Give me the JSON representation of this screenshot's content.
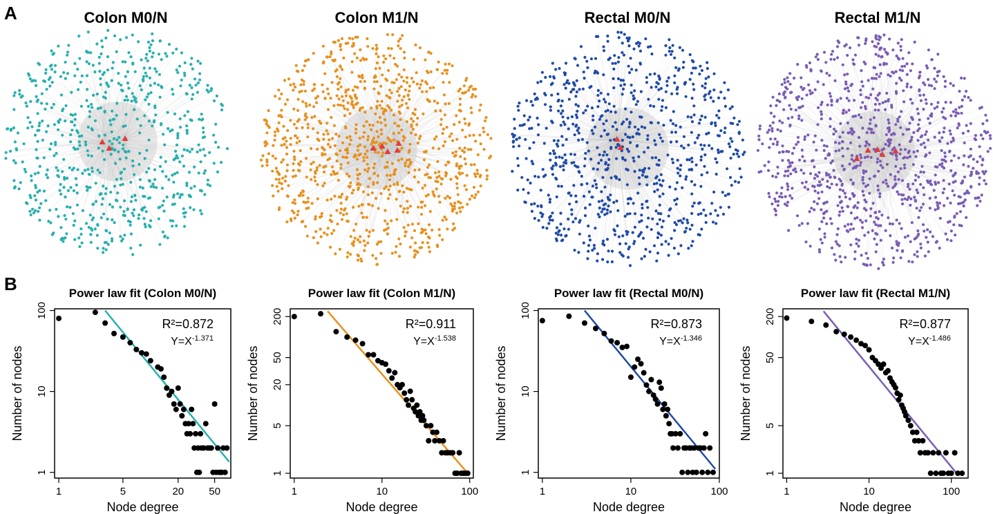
{
  "panel_labels": {
    "a": "A",
    "b": "B"
  },
  "networks": [
    {
      "title": "Colon M0/N",
      "color": "#26b0ad",
      "node_count": 700
    },
    {
      "title": "Colon M1/N",
      "color": "#e8901c",
      "node_count": 1000
    },
    {
      "title": "Rectal M0/N",
      "color": "#1f4aa8",
      "node_count": 850
    },
    {
      "title": "Rectal M1/N",
      "color": "#7a5cb5",
      "node_count": 1000
    }
  ],
  "hub_color": "#e23b3b",
  "edge_color": "#c9c9c9",
  "chart_data": [
    {
      "type": "scatter",
      "title": "Power law fit (Colon M0/N)",
      "xlabel": "Node degree",
      "ylabel": "Number of nodes",
      "xscale": "log",
      "yscale": "log",
      "xlim": [
        0.9,
        75
      ],
      "ylim": [
        0.85,
        105
      ],
      "xticks": [
        1,
        5,
        20,
        50
      ],
      "yticks": [
        1,
        10,
        100
      ],
      "r2_text": "R²=0.872",
      "eq_base": "Y=X",
      "eq_exp": "-1.371",
      "fit_color": "#26b0ad",
      "fit_line": {
        "x": [
          3.2,
          72
        ],
        "y": [
          100,
          1.35
        ]
      },
      "points": {
        "x": [
          1,
          2.5,
          3.2,
          4,
          5,
          6,
          7,
          8,
          9,
          10,
          12,
          13,
          14,
          15,
          16,
          17,
          18,
          19,
          20,
          21,
          22,
          23,
          24,
          25,
          26,
          27,
          28,
          29,
          30,
          31,
          32,
          33,
          34,
          35,
          36,
          38,
          40,
          42,
          44,
          46,
          48,
          50,
          52,
          54,
          56,
          58,
          60,
          62,
          65,
          68
        ],
        "y": [
          80,
          95,
          70,
          52,
          47,
          40,
          33,
          30,
          29,
          24,
          20,
          19,
          15,
          11,
          9,
          10,
          7,
          6,
          11,
          7,
          5,
          6,
          4,
          3,
          4,
          3,
          6,
          4,
          2,
          3,
          1,
          2,
          1,
          3,
          2,
          2,
          4,
          2,
          2,
          2,
          1,
          7,
          1,
          2,
          1,
          1,
          1,
          2,
          1,
          2
        ]
      }
    },
    {
      "type": "scatter",
      "title": "Power law fit (Colon M1/N)",
      "xlabel": "Node degree",
      "ylabel": "Number of nodes",
      "xscale": "log",
      "yscale": "log",
      "xlim": [
        0.9,
        110
      ],
      "ylim": [
        0.85,
        260
      ],
      "xticks": [
        1,
        10,
        100
      ],
      "yticks": [
        1,
        5,
        20,
        50,
        200
      ],
      "r2_text": "R²=0.911",
      "eq_base": "Y=X",
      "eq_exp": "-1.538",
      "fit_color": "#e8901c",
      "fit_line": {
        "x": [
          2.4,
          95
        ],
        "y": [
          240,
          1
        ]
      },
      "points": {
        "x": [
          1,
          2,
          3,
          4,
          5,
          6,
          7,
          8,
          9,
          10,
          11,
          12,
          13,
          14,
          15,
          16,
          17,
          18,
          19,
          20,
          21,
          22,
          23,
          24,
          25,
          26,
          27,
          28,
          29,
          30,
          32,
          34,
          36,
          38,
          40,
          42,
          45,
          48,
          50,
          53,
          56,
          60,
          64,
          68,
          72,
          76,
          80,
          85,
          90,
          95
        ],
        "y": [
          200,
          220,
          120,
          100,
          90,
          80,
          55,
          55,
          45,
          42,
          40,
          32,
          25,
          30,
          20,
          18,
          20,
          15,
          12,
          10,
          16,
          12,
          9,
          8,
          10,
          7,
          8,
          6,
          7,
          6,
          5,
          3,
          5,
          4,
          3,
          4,
          3,
          2,
          3,
          2,
          2,
          2,
          2,
          1,
          1,
          2,
          1,
          1,
          1,
          1
        ]
      }
    },
    {
      "type": "scatter",
      "title": "Power law fit (Rectal M0/N)",
      "xlabel": "Node degree",
      "ylabel": "Number of nodes",
      "xscale": "log",
      "yscale": "log",
      "xlim": [
        0.9,
        100
      ],
      "ylim": [
        0.85,
        105
      ],
      "xticks": [
        1,
        10,
        100
      ],
      "yticks": [
        1,
        10,
        100
      ],
      "r2_text": "R²=0.873",
      "eq_base": "Y=X",
      "eq_exp": "-1.346",
      "fit_color": "#1f4aa8",
      "fit_line": {
        "x": [
          3,
          90
        ],
        "y": [
          100,
          1.1
        ]
      },
      "points": {
        "x": [
          1,
          2,
          3,
          4,
          5,
          6,
          7,
          8,
          9,
          10,
          11,
          12,
          13,
          14,
          15,
          16,
          17,
          18,
          19,
          20,
          21,
          22,
          23,
          24,
          25,
          26,
          27,
          28,
          29,
          30,
          32,
          34,
          36,
          38,
          40,
          42,
          44,
          46,
          48,
          50,
          52,
          55,
          58,
          61,
          64,
          67,
          70,
          74,
          78,
          85
        ],
        "y": [
          75,
          85,
          70,
          60,
          52,
          42,
          40,
          35,
          36,
          15,
          20,
          25,
          22,
          17,
          12,
          10,
          14,
          9,
          8,
          7,
          13,
          11,
          6,
          7,
          5,
          6,
          4,
          3,
          3,
          2,
          3,
          2,
          3,
          1,
          2,
          2,
          1,
          2,
          2,
          1,
          2,
          1,
          2,
          2,
          1,
          2,
          3,
          1,
          2,
          1
        ]
      }
    },
    {
      "type": "scatter",
      "title": "Power law fit (Rectal M1/N)",
      "xlabel": "Node degree",
      "ylabel": "Number of nodes",
      "xscale": "log",
      "yscale": "log",
      "xlim": [
        0.9,
        160
      ],
      "ylim": [
        0.85,
        260
      ],
      "xticks": [
        1,
        10,
        100
      ],
      "yticks": [
        1,
        5,
        50,
        200
      ],
      "r2_text": "R²=0.877",
      "eq_base": "Y=X",
      "eq_exp": "-1.486",
      "fit_color": "#7a5cb5",
      "fit_line": {
        "x": [
          2.8,
          120
        ],
        "y": [
          240,
          0.95
        ]
      },
      "points": {
        "x": [
          1,
          2,
          3,
          4,
          5,
          6,
          7,
          8,
          9,
          10,
          11,
          12,
          13,
          14,
          15,
          16,
          17,
          18,
          19,
          20,
          21,
          22,
          23,
          24,
          25,
          26,
          27,
          28,
          30,
          32,
          34,
          36,
          38,
          40,
          42,
          45,
          48,
          52,
          56,
          60,
          65,
          70,
          75,
          80,
          86,
          92,
          100,
          110,
          120,
          135
        ],
        "y": [
          190,
          170,
          150,
          120,
          110,
          100,
          90,
          80,
          75,
          65,
          50,
          45,
          40,
          35,
          40,
          30,
          32,
          25,
          22,
          20,
          18,
          15,
          12,
          14,
          10,
          9,
          8,
          7,
          6,
          5,
          4,
          3,
          4,
          3,
          2,
          3,
          2,
          2,
          1,
          2,
          1,
          2,
          1,
          1,
          2,
          1,
          1,
          2,
          1,
          1
        ]
      }
    }
  ]
}
